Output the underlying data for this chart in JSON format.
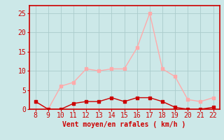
{
  "hours": [
    8,
    9,
    10,
    11,
    12,
    13,
    14,
    15,
    16,
    17,
    18,
    19,
    20,
    21,
    22
  ],
  "rafales": [
    2,
    0,
    6,
    7,
    10.5,
    10,
    10.5,
    10.5,
    16,
    25,
    10.5,
    8.5,
    2.5,
    2,
    3
  ],
  "moyen": [
    2,
    0,
    0,
    1.5,
    2,
    2,
    3,
    2,
    3,
    3,
    2,
    0.5,
    0,
    0,
    0.5
  ],
  "color_rafales": "#ffaaaa",
  "color_moyen": "#cc0000",
  "bg_color": "#cce8e8",
  "grid_color": "#aacccc",
  "xlabel": "Vent moyen/en rafales ( km/h )",
  "ylim": [
    0,
    27
  ],
  "yticks": [
    0,
    5,
    10,
    15,
    20,
    25
  ],
  "xlim": [
    7.5,
    22.5
  ],
  "xticks": [
    8,
    9,
    10,
    11,
    12,
    13,
    14,
    15,
    16,
    17,
    18,
    19,
    20,
    21,
    22
  ],
  "label_fontsize": 7,
  "tick_fontsize": 7
}
